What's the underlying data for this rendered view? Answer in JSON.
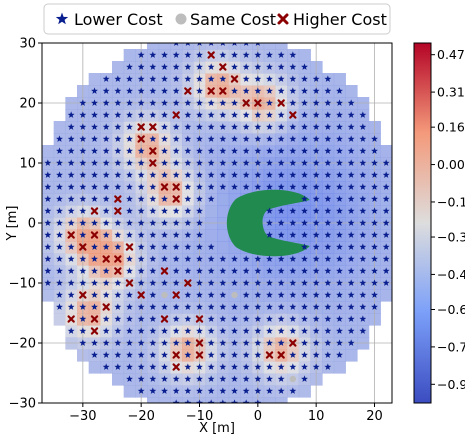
{
  "chart_data": {
    "type": "scatter",
    "xlabel": "X [m]",
    "ylabel": "Y [m]",
    "xlim": [
      -37,
      23
    ],
    "ylim": [
      -30,
      30
    ],
    "x_ticks": [
      -30,
      -20,
      -10,
      0,
      10,
      20
    ],
    "y_ticks": [
      -30,
      -20,
      -10,
      0,
      10,
      20,
      30
    ],
    "x_tick_labels": [
      "−30",
      "−20",
      "−10",
      "0",
      "10",
      "20"
    ],
    "y_tick_labels": [
      "−30",
      "−20",
      "−10",
      "0",
      "10",
      "20",
      "30"
    ],
    "grid": true,
    "grid_spacing": 2,
    "region": {
      "center": [
        -7,
        0
      ],
      "radius": 31
    },
    "legend": {
      "placement": "top",
      "entries": [
        {
          "label": "Lower Cost",
          "marker": "star",
          "color": "#0a1f8f"
        },
        {
          "label": "Same Cost",
          "marker": "circle",
          "color": "#bdbdbd"
        },
        {
          "label": "Higher Cost",
          "marker": "x",
          "color": "#8b0000"
        }
      ]
    },
    "colorbar": {
      "colormap": "coolwarm",
      "range": [
        -1.02,
        0.52
      ],
      "ticks": [
        0.47,
        0.31,
        0.16,
        0.0,
        -0.16,
        -0.31,
        -0.47,
        -0.62,
        -0.78,
        -0.94
      ],
      "tick_labels": [
        "0.47",
        "0.31",
        "0.16",
        "0.00",
        "−0.16",
        "−0.31",
        "−0.47",
        "−0.62",
        "−0.78",
        "−0.94"
      ]
    },
    "obstacle": {
      "shape": "C",
      "color": "#218a4f",
      "center": [
        0,
        0
      ]
    },
    "higher_cost_points": [
      [
        -20,
        16
      ],
      [
        -18,
        16
      ],
      [
        -20,
        14
      ],
      [
        -18,
        12
      ],
      [
        -18,
        10
      ],
      [
        -16,
        6
      ],
      [
        -14,
        6
      ],
      [
        -14,
        4
      ],
      [
        -24,
        -6
      ],
      [
        -26,
        -6
      ],
      [
        -22,
        -4
      ],
      [
        -24,
        -8
      ],
      [
        -22,
        -10
      ],
      [
        -20,
        -12
      ],
      [
        -32,
        -2
      ],
      [
        -30,
        -4
      ],
      [
        -28,
        2
      ],
      [
        -28,
        -2
      ],
      [
        -24,
        4
      ],
      [
        -24,
        2
      ],
      [
        -30,
        -12
      ],
      [
        -32,
        -16
      ],
      [
        -28,
        -16
      ],
      [
        -26,
        -14
      ],
      [
        -28,
        -18
      ],
      [
        -8,
        22
      ],
      [
        -6,
        22
      ],
      [
        -4,
        24
      ],
      [
        -12,
        22
      ],
      [
        -14,
        18
      ],
      [
        -6,
        26
      ],
      [
        -8,
        28
      ],
      [
        -10,
        -16
      ],
      [
        -10,
        -20
      ],
      [
        -10,
        -22
      ],
      [
        -14,
        -22
      ],
      [
        -14,
        -24
      ],
      [
        2,
        -22
      ],
      [
        4,
        -22
      ],
      [
        6,
        -20
      ],
      [
        -2,
        20
      ],
      [
        0,
        20
      ],
      [
        4,
        20
      ],
      [
        6,
        18
      ],
      [
        -16,
        -8
      ],
      [
        -16,
        -16
      ],
      [
        -12,
        -10
      ],
      [
        -14,
        -12
      ]
    ],
    "same_cost_points": [
      [
        -16,
        -12
      ],
      [
        6,
        -26
      ],
      [
        -4,
        -12
      ]
    ],
    "lower_cost_points": "all remaining grid points (2 m spacing) inside the circular region, excluding the obstacle"
  }
}
